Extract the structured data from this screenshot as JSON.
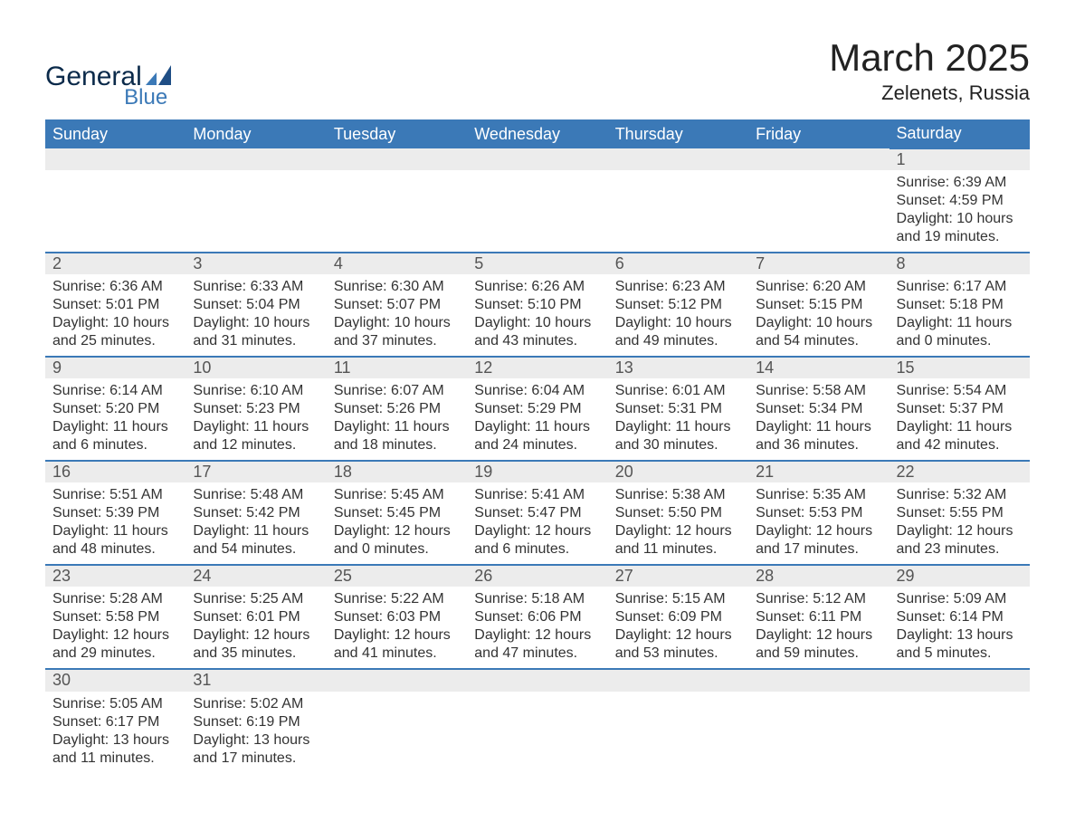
{
  "logo": {
    "main": "General",
    "sub": "Blue"
  },
  "title": "March 2025",
  "location": "Zelenets, Russia",
  "dayHeaders": [
    "Sunday",
    "Monday",
    "Tuesday",
    "Wednesday",
    "Thursday",
    "Friday",
    "Saturday"
  ],
  "colors": {
    "header_bg": "#3b79b7",
    "header_text": "#ffffff",
    "daynum_bg": "#ececec",
    "row_divider": "#3b79b7",
    "text": "#333333",
    "logo_dark": "#0b2a4a",
    "logo_blue": "#3b79b7",
    "page_bg": "#ffffff"
  },
  "typography": {
    "title_fontsize": 42,
    "location_fontsize": 22,
    "header_fontsize": 18,
    "daynum_fontsize": 18,
    "body_fontsize": 16,
    "font_family": "Arial"
  },
  "weeks": [
    [
      null,
      null,
      null,
      null,
      null,
      null,
      {
        "n": "1",
        "sr": "Sunrise: 6:39 AM",
        "ss": "Sunset: 4:59 PM",
        "dl": "Daylight: 10 hours and 19 minutes."
      }
    ],
    [
      {
        "n": "2",
        "sr": "Sunrise: 6:36 AM",
        "ss": "Sunset: 5:01 PM",
        "dl": "Daylight: 10 hours and 25 minutes."
      },
      {
        "n": "3",
        "sr": "Sunrise: 6:33 AM",
        "ss": "Sunset: 5:04 PM",
        "dl": "Daylight: 10 hours and 31 minutes."
      },
      {
        "n": "4",
        "sr": "Sunrise: 6:30 AM",
        "ss": "Sunset: 5:07 PM",
        "dl": "Daylight: 10 hours and 37 minutes."
      },
      {
        "n": "5",
        "sr": "Sunrise: 6:26 AM",
        "ss": "Sunset: 5:10 PM",
        "dl": "Daylight: 10 hours and 43 minutes."
      },
      {
        "n": "6",
        "sr": "Sunrise: 6:23 AM",
        "ss": "Sunset: 5:12 PM",
        "dl": "Daylight: 10 hours and 49 minutes."
      },
      {
        "n": "7",
        "sr": "Sunrise: 6:20 AM",
        "ss": "Sunset: 5:15 PM",
        "dl": "Daylight: 10 hours and 54 minutes."
      },
      {
        "n": "8",
        "sr": "Sunrise: 6:17 AM",
        "ss": "Sunset: 5:18 PM",
        "dl": "Daylight: 11 hours and 0 minutes."
      }
    ],
    [
      {
        "n": "9",
        "sr": "Sunrise: 6:14 AM",
        "ss": "Sunset: 5:20 PM",
        "dl": "Daylight: 11 hours and 6 minutes."
      },
      {
        "n": "10",
        "sr": "Sunrise: 6:10 AM",
        "ss": "Sunset: 5:23 PM",
        "dl": "Daylight: 11 hours and 12 minutes."
      },
      {
        "n": "11",
        "sr": "Sunrise: 6:07 AM",
        "ss": "Sunset: 5:26 PM",
        "dl": "Daylight: 11 hours and 18 minutes."
      },
      {
        "n": "12",
        "sr": "Sunrise: 6:04 AM",
        "ss": "Sunset: 5:29 PM",
        "dl": "Daylight: 11 hours and 24 minutes."
      },
      {
        "n": "13",
        "sr": "Sunrise: 6:01 AM",
        "ss": "Sunset: 5:31 PM",
        "dl": "Daylight: 11 hours and 30 minutes."
      },
      {
        "n": "14",
        "sr": "Sunrise: 5:58 AM",
        "ss": "Sunset: 5:34 PM",
        "dl": "Daylight: 11 hours and 36 minutes."
      },
      {
        "n": "15",
        "sr": "Sunrise: 5:54 AM",
        "ss": "Sunset: 5:37 PM",
        "dl": "Daylight: 11 hours and 42 minutes."
      }
    ],
    [
      {
        "n": "16",
        "sr": "Sunrise: 5:51 AM",
        "ss": "Sunset: 5:39 PM",
        "dl": "Daylight: 11 hours and 48 minutes."
      },
      {
        "n": "17",
        "sr": "Sunrise: 5:48 AM",
        "ss": "Sunset: 5:42 PM",
        "dl": "Daylight: 11 hours and 54 minutes."
      },
      {
        "n": "18",
        "sr": "Sunrise: 5:45 AM",
        "ss": "Sunset: 5:45 PM",
        "dl": "Daylight: 12 hours and 0 minutes."
      },
      {
        "n": "19",
        "sr": "Sunrise: 5:41 AM",
        "ss": "Sunset: 5:47 PM",
        "dl": "Daylight: 12 hours and 6 minutes."
      },
      {
        "n": "20",
        "sr": "Sunrise: 5:38 AM",
        "ss": "Sunset: 5:50 PM",
        "dl": "Daylight: 12 hours and 11 minutes."
      },
      {
        "n": "21",
        "sr": "Sunrise: 5:35 AM",
        "ss": "Sunset: 5:53 PM",
        "dl": "Daylight: 12 hours and 17 minutes."
      },
      {
        "n": "22",
        "sr": "Sunrise: 5:32 AM",
        "ss": "Sunset: 5:55 PM",
        "dl": "Daylight: 12 hours and 23 minutes."
      }
    ],
    [
      {
        "n": "23",
        "sr": "Sunrise: 5:28 AM",
        "ss": "Sunset: 5:58 PM",
        "dl": "Daylight: 12 hours and 29 minutes."
      },
      {
        "n": "24",
        "sr": "Sunrise: 5:25 AM",
        "ss": "Sunset: 6:01 PM",
        "dl": "Daylight: 12 hours and 35 minutes."
      },
      {
        "n": "25",
        "sr": "Sunrise: 5:22 AM",
        "ss": "Sunset: 6:03 PM",
        "dl": "Daylight: 12 hours and 41 minutes."
      },
      {
        "n": "26",
        "sr": "Sunrise: 5:18 AM",
        "ss": "Sunset: 6:06 PM",
        "dl": "Daylight: 12 hours and 47 minutes."
      },
      {
        "n": "27",
        "sr": "Sunrise: 5:15 AM",
        "ss": "Sunset: 6:09 PM",
        "dl": "Daylight: 12 hours and 53 minutes."
      },
      {
        "n": "28",
        "sr": "Sunrise: 5:12 AM",
        "ss": "Sunset: 6:11 PM",
        "dl": "Daylight: 12 hours and 59 minutes."
      },
      {
        "n": "29",
        "sr": "Sunrise: 5:09 AM",
        "ss": "Sunset: 6:14 PM",
        "dl": "Daylight: 13 hours and 5 minutes."
      }
    ],
    [
      {
        "n": "30",
        "sr": "Sunrise: 5:05 AM",
        "ss": "Sunset: 6:17 PM",
        "dl": "Daylight: 13 hours and 11 minutes."
      },
      {
        "n": "31",
        "sr": "Sunrise: 5:02 AM",
        "ss": "Sunset: 6:19 PM",
        "dl": "Daylight: 13 hours and 17 minutes."
      },
      null,
      null,
      null,
      null,
      null
    ]
  ]
}
